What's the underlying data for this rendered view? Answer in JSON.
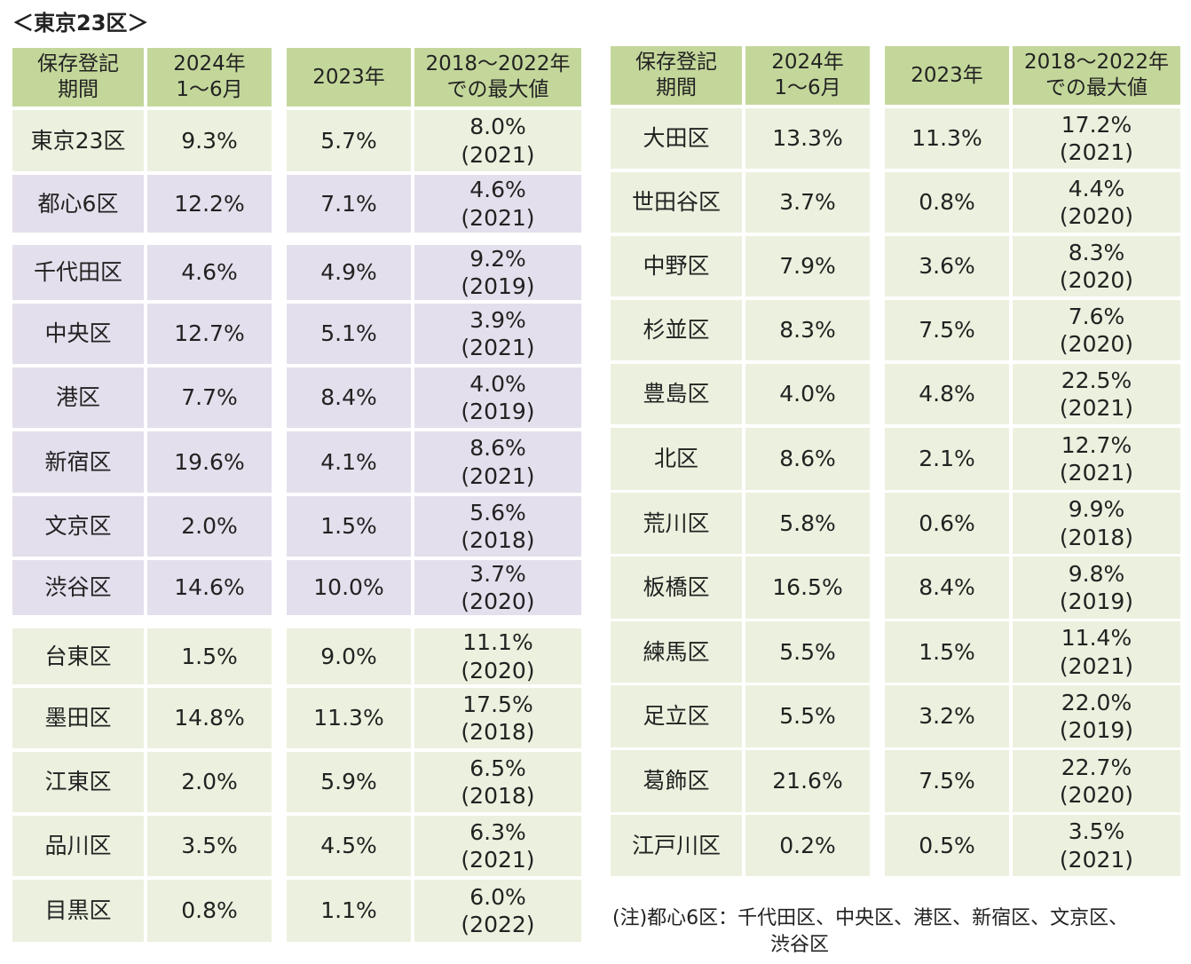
{
  "title": "＜東京23区＞",
  "header": [
    [
      "保存登記",
      "期間"
    ],
    [
      "2024年",
      "1～6月"
    ],
    [
      "2023年"
    ],
    [
      "2018～2022年",
      "での最大値"
    ]
  ],
  "left_table": {
    "rows": [
      [
        "東京23区",
        "9.3%",
        "5.7%",
        "8.0%",
        "(2021)"
      ],
      [
        "都心6区",
        "12.2%",
        "7.1%",
        "4.6%",
        "(2021)"
      ],
      [
        "千代田区",
        "4.6%",
        "4.9%",
        "9.2%",
        "(2019)"
      ],
      [
        "中央区",
        "12.7%",
        "5.1%",
        "3.9%",
        "(2021)"
      ],
      [
        "港区",
        "7.7%",
        "8.4%",
        "4.0%",
        "(2019)"
      ],
      [
        "新宿区",
        "19.6%",
        "4.1%",
        "8.6%",
        "(2021)"
      ],
      [
        "文京区",
        "2.0%",
        "1.5%",
        "5.6%",
        "(2018)"
      ],
      [
        "渋谷区",
        "14.6%",
        "10.0%",
        "3.7%",
        "(2020)"
      ],
      [
        "台東区",
        "1.5%",
        "9.0%",
        "11.1%",
        "(2020)"
      ],
      [
        "墨田区",
        "14.8%",
        "11.3%",
        "17.5%",
        "(2018)"
      ],
      [
        "江東区",
        "2.0%",
        "5.9%",
        "6.5%",
        "(2018)"
      ],
      [
        "品川区",
        "3.5%",
        "4.5%",
        "6.3%",
        "(2021)"
      ],
      [
        "目黒区",
        "0.8%",
        "1.1%",
        "6.0%",
        "(2022)"
      ]
    ]
  },
  "right_table": {
    "rows": [
      [
        "大田区",
        "13.3%",
        "11.3%",
        "17.2%",
        "(2021)"
      ],
      [
        "世田谷区",
        "3.7%",
        "0.8%",
        "4.4%",
        "(2020)"
      ],
      [
        "中野区",
        "7.9%",
        "3.6%",
        "8.3%",
        "(2020)"
      ],
      [
        "杉並区",
        "8.3%",
        "7.5%",
        "7.6%",
        "(2020)"
      ],
      [
        "豊島区",
        "4.0%",
        "4.8%",
        "22.5%",
        "(2021)"
      ],
      [
        "北区",
        "8.6%",
        "2.1%",
        "12.7%",
        "(2021)"
      ],
      [
        "荒川区",
        "5.8%",
        "0.6%",
        "9.9%",
        "(2018)"
      ],
      [
        "板橋区",
        "16.5%",
        "8.4%",
        "9.8%",
        "(2019)"
      ],
      [
        "練馬区",
        "5.5%",
        "1.5%",
        "11.4%",
        "(2021)"
      ],
      [
        "足立区",
        "5.5%",
        "3.2%",
        "22.0%",
        "(2019)"
      ],
      [
        "葛飾区",
        "21.6%",
        "7.5%",
        "22.7%",
        "(2020)"
      ],
      [
        "江戸川区",
        "0.2%",
        "0.5%",
        "3.5%",
        "(2021)"
      ]
    ]
  },
  "note": [
    "(注)都心6区：千代田区、中央区、港区、新宿区、文京区、",
    "渋谷区"
  ]
}
